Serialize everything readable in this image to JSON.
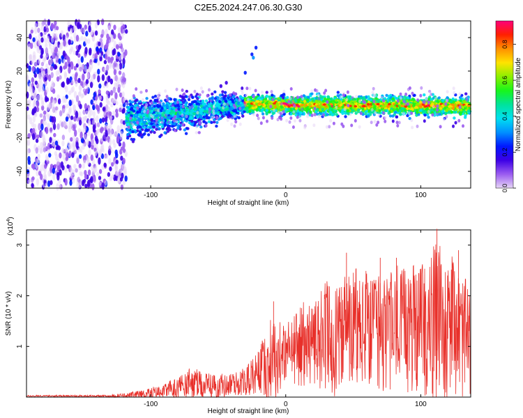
{
  "title": "C2E5.2024.247.06.30.G30",
  "chart_data": [
    {
      "type": "heatmap",
      "title": "C2E5.2024.247.06.30.G30",
      "xlabel": "Height of straight line (km)",
      "ylabel": "Frequency (Hz)",
      "xlim": [
        -192,
        137
      ],
      "ylim": [
        -50,
        50
      ],
      "x_ticks": [
        -100,
        0,
        100
      ],
      "y_ticks": [
        -40,
        -20,
        0,
        20,
        40
      ],
      "grid": false,
      "colorbar": {
        "label": "Normalized spectral amplitude",
        "range": [
          0.0,
          0.93
        ],
        "ticks": [
          0.0,
          0.2,
          0.4,
          0.6,
          0.8
        ],
        "tick_labels": [
          "0.0",
          "0.2",
          "0.4",
          "0.6",
          "0.8"
        ],
        "colors": [
          "#e6d6f6",
          "#9b5cf0",
          "#3c00e6",
          "#0018ff",
          "#0090ff",
          "#00e0f0",
          "#00e39a",
          "#18f51c",
          "#8cf000",
          "#ffe300",
          "#ff9000",
          "#ff2000",
          "#ff007a"
        ]
      },
      "regions": [
        {
          "name": "noise",
          "x_range": [
            -192,
            -118
          ],
          "f_range": [
            -50,
            50
          ],
          "amplitude": 0.15
        },
        {
          "name": "transition",
          "x_range": [
            -118,
            -30
          ],
          "center_hz": [
            -9,
            0
          ],
          "half_width_hz": [
            9,
            5
          ],
          "amplitude": 0.4
        },
        {
          "name": "carrier",
          "x_range": [
            -30,
            137
          ],
          "center_hz": [
            0,
            -1
          ],
          "half_width_hz": [
            4,
            4
          ],
          "amplitude": 0.7
        }
      ]
    },
    {
      "type": "line",
      "xlabel": "Height of straight line (km)",
      "ylabel": "SNR (10 * v/v)",
      "y_multiplier": "(x10",
      "y_multiplier_exp": "4",
      "y_multiplier_close": ")",
      "xlim": [
        -192,
        137
      ],
      "ylim": [
        0,
        3.3
      ],
      "x_ticks": [
        -100,
        0,
        100
      ],
      "y_ticks": [
        1,
        2,
        3
      ],
      "grid": false,
      "series": [
        {
          "color": "#e8302a",
          "x": [
            -192,
            -180,
            -170,
            -160,
            -150,
            -140,
            -130,
            -120,
            -110,
            -100,
            -90,
            -80,
            -70,
            -60,
            -50,
            -40,
            -30,
            -20,
            -10,
            0,
            10,
            20,
            30,
            40,
            50,
            60,
            70,
            80,
            90,
            100,
            110,
            120,
            130,
            137
          ],
          "y_envelope": [
            0.04,
            0.04,
            0.04,
            0.04,
            0.04,
            0.04,
            0.05,
            0.08,
            0.12,
            0.2,
            0.25,
            0.45,
            0.6,
            0.5,
            0.45,
            0.5,
            0.6,
            1.0,
            1.7,
            1.4,
            1.9,
            1.9,
            2.3,
            2.5,
            2.6,
            2.5,
            2.4,
            2.6,
            2.7,
            2.8,
            3.2,
            2.9,
            2.6,
            2.3
          ],
          "y_mean": [
            0.02,
            0.02,
            0.02,
            0.02,
            0.02,
            0.02,
            0.02,
            0.03,
            0.04,
            0.07,
            0.12,
            0.18,
            0.25,
            0.22,
            0.2,
            0.25,
            0.3,
            0.5,
            0.7,
            0.85,
            1.0,
            1.05,
            1.1,
            1.15,
            1.25,
            1.25,
            1.2,
            1.25,
            1.3,
            1.35,
            1.4,
            1.3,
            1.2,
            1.1
          ],
          "peaks": [
            [
              -9,
              1.89
            ],
            [
              45,
              2.85
            ],
            [
              70,
              2.75
            ],
            [
              82,
              2.75
            ],
            [
              112,
              3.32
            ],
            [
              128,
              2.9
            ]
          ]
        }
      ]
    }
  ]
}
